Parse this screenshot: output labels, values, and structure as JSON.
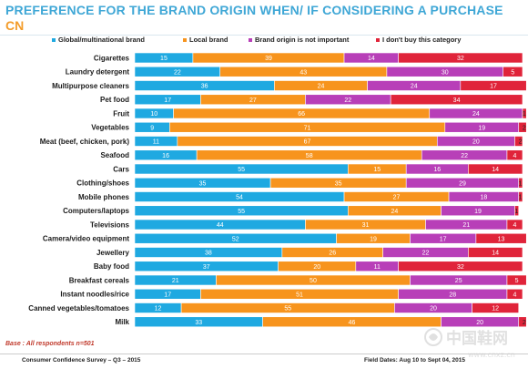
{
  "header": {
    "title": "PREFERENCE FOR THE BRAND ORIGIN WHEN/ IF CONSIDERING A PURCHASE",
    "subtitle": "CN"
  },
  "chart_data": {
    "type": "bar",
    "orientation": "horizontal",
    "stacked": true,
    "stacked_total": 100,
    "legend_position": "top",
    "categories": [
      "Cigarettes",
      "Laundry detergent",
      "Multipurpose cleaners",
      "Pet food",
      "Fruit",
      "Vegetables",
      "Meat (beef, chicken, pork)",
      "Seafood",
      "Cars",
      "Clothing/shoes",
      "Mobile phones",
      "Computers/laptops",
      "Televisions",
      "Camera/video equipment",
      "Jewellery",
      "Baby food",
      "Breakfast cereals",
      "Instant noodles/rice",
      "Canned vegetables/tomatoes",
      "Milk"
    ],
    "series": [
      {
        "name": "Global/multinational brand",
        "color": "#1fa9e1",
        "values": [
          15,
          22,
          36,
          17,
          10,
          9,
          11,
          16,
          55,
          35,
          54,
          55,
          44,
          52,
          38,
          37,
          21,
          17,
          12,
          33
        ]
      },
      {
        "name": "Local brand",
        "color": "#f7941d",
        "values": [
          39,
          43,
          24,
          27,
          66,
          71,
          67,
          58,
          15,
          35,
          27,
          24,
          31,
          19,
          26,
          20,
          50,
          51,
          55,
          46
        ]
      },
      {
        "name": "Brand origin is not important",
        "color": "#b83fb8",
        "values": [
          14,
          30,
          24,
          22,
          24,
          19,
          20,
          22,
          16,
          29,
          18,
          19,
          21,
          17,
          22,
          11,
          25,
          28,
          20,
          20
        ]
      },
      {
        "name": "I don't buy this category",
        "color": "#e0243a",
        "values": [
          32,
          5,
          17,
          34,
          1,
          2,
          2,
          4,
          14,
          1,
          1,
          1,
          4,
          13,
          14,
          32,
          5,
          4,
          12,
          2
        ]
      }
    ]
  },
  "footnote": "Base : All respondents n=501",
  "footer": {
    "left": "Consumer Confidence Survey – Q3 – 2015",
    "right": "Field Dates: Aug 10 to Sept 04, 2015"
  },
  "watermark": {
    "text": "中国鞋网",
    "url": "www.cnxz.cn"
  }
}
